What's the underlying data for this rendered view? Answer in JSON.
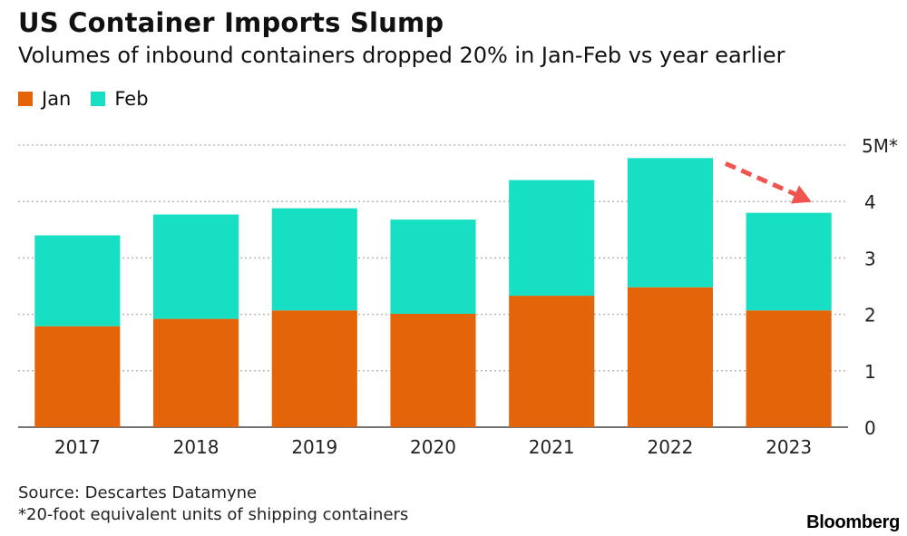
{
  "header": {
    "title": "US Container Imports Slump",
    "subtitle": "Volumes of inbound containers dropped 20% in Jan-Feb vs year earlier"
  },
  "legend": {
    "items": [
      {
        "label": "Jan",
        "color": "#e4640a"
      },
      {
        "label": "Feb",
        "color": "#16dfc4"
      }
    ]
  },
  "footer": {
    "source": "Source: Descartes Datamyne",
    "note": "*20-foot equivalent units of shipping containers",
    "brand": "Bloomberg"
  },
  "chart_data": {
    "type": "bar",
    "stacked": true,
    "categories": [
      "2017",
      "2018",
      "2019",
      "2020",
      "2021",
      "2022",
      "2023"
    ],
    "series": [
      {
        "name": "Jan",
        "color": "#e4640a",
        "values": [
          1.79,
          1.92,
          2.07,
          2.01,
          2.33,
          2.48,
          2.07
        ]
      },
      {
        "name": "Feb",
        "color": "#16dfc4",
        "values": [
          1.61,
          1.85,
          1.81,
          1.67,
          2.05,
          2.29,
          1.73
        ]
      }
    ],
    "y_ticks": [
      {
        "value": 0,
        "label": "0"
      },
      {
        "value": 1,
        "label": "1"
      },
      {
        "value": 2,
        "label": "2"
      },
      {
        "value": 3,
        "label": "3"
      },
      {
        "value": 4,
        "label": "4"
      },
      {
        "value": 5,
        "label": "5M*"
      }
    ],
    "ylim": [
      0,
      5
    ],
    "y_axis_side": "right",
    "grid": true,
    "legend_position": "top-left",
    "annotation": {
      "type": "dashed-arrow",
      "from": "2022",
      "to": "2023",
      "color": "#f0544f"
    }
  }
}
